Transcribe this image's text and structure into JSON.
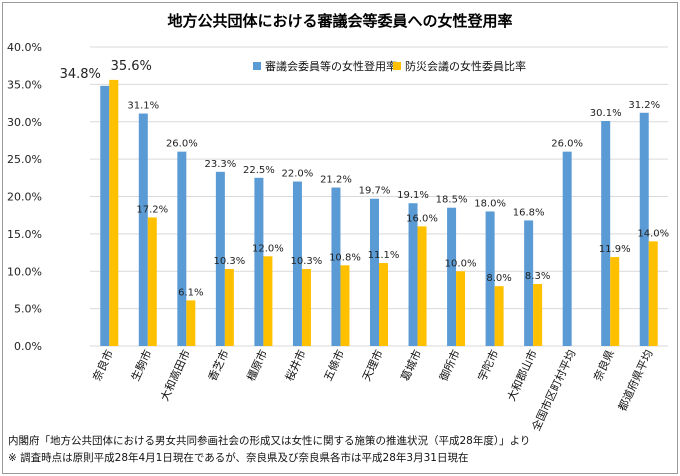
{
  "chart_data": {
    "type": "bar",
    "title": "地方公共団体における審議会等委員への女性登用率",
    "categories": [
      "奈良市",
      "生駒市",
      "大和高田市",
      "香芝市",
      "橿原市",
      "桜井市",
      "五條市",
      "天理市",
      "葛城市",
      "御所市",
      "宇陀市",
      "大和郡山市",
      "全国市区町村平均",
      "奈良県",
      "都道府県平均"
    ],
    "series": [
      {
        "name": "審議会委員等の女性登用率",
        "color": "#5B9BD5",
        "values": [
          34.8,
          31.1,
          26.0,
          23.3,
          22.5,
          22.0,
          21.2,
          19.7,
          19.1,
          18.5,
          18.0,
          16.8,
          26.0,
          30.1,
          31.2
        ],
        "labels": [
          "34.8%",
          "31.1%",
          "26.0%",
          "23.3%",
          "22.5%",
          "22.0%",
          "21.2%",
          "19.7%",
          "19.1%",
          "18.5%",
          "18.0%",
          "16.8%",
          "26.0%",
          "30.1%",
          "31.2%"
        ]
      },
      {
        "name": "防災会議の女性委員比率",
        "color": "#FFC000",
        "values": [
          35.6,
          17.2,
          6.1,
          10.3,
          12.0,
          10.3,
          10.8,
          11.1,
          16.0,
          10.0,
          8.0,
          8.3,
          null,
          11.9,
          14.0
        ],
        "labels": [
          "35.6%",
          "17.2%",
          "6.1%",
          "10.3%",
          "12.0%",
          "10.3%",
          "10.8%",
          "11.1%",
          "16.0%",
          "10.0%",
          "8.0%",
          "8.3%",
          "",
          "11.9%",
          "14.0%"
        ]
      }
    ],
    "ylim": [
      0,
      40
    ],
    "yticks": [
      0,
      5,
      10,
      15,
      20,
      25,
      30,
      35,
      40
    ],
    "ytick_labels": [
      "0.0%",
      "5.0%",
      "10.0%",
      "15.0%",
      "20.0%",
      "25.0%",
      "30.0%",
      "35.0%",
      "40.0%"
    ],
    "grid": true,
    "legend": "top-right"
  },
  "footer": {
    "line1": "内閣府「地方公共団体における男女共同参画社会の形成又は女性に関する施策の推進状況（平成28年度）」より",
    "line2": "※ 調査時点は原則平成28年4月1日現在であるが、奈良県及び奈良県各市は平成28年3月31日現在"
  }
}
